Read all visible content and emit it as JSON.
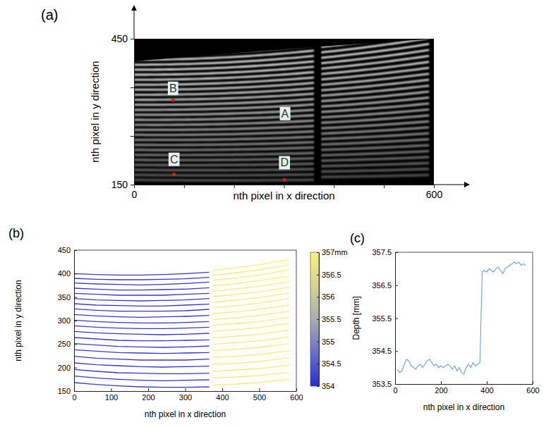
{
  "chart_data": [
    {
      "type": "image",
      "panel_label": "(a)",
      "x_label": "nth pixel in x direction",
      "y_label": "nth pixel in y direction",
      "xlim": [
        0,
        600
      ],
      "ylim": [
        150,
        450
      ],
      "xticks": [
        0,
        {
          "value": 100,
          "label": null
        },
        {
          "value": 200,
          "label": null
        },
        {
          "value": 300,
          "label": null
        },
        {
          "value": 400,
          "label": null
        },
        {
          "value": 500,
          "label": null
        },
        600
      ],
      "yticks": [
        150,
        {
          "value": 250,
          "label": null
        },
        {
          "value": 350,
          "label": null
        },
        450
      ],
      "annotations": [
        {
          "text": "A",
          "x": 302,
          "y": 296
        },
        {
          "text": "B",
          "x": 78,
          "y": 348,
          "point": [
            78,
            324
          ]
        },
        {
          "text": "C",
          "x": 80,
          "y": 202,
          "point": [
            80,
            171
          ]
        },
        {
          "text": "D",
          "x": 301,
          "y": 195,
          "point": [
            301,
            160
          ]
        }
      ]
    },
    {
      "type": "line",
      "panel_label": "(b)",
      "x_label": "nth pixel in x direction",
      "y_label": "nth pixel in y direction",
      "xlim": [
        0,
        600
      ],
      "ylim": [
        150,
        450
      ],
      "xticks": [
        0,
        100,
        200,
        300,
        400,
        500,
        600
      ],
      "yticks": [
        150,
        200,
        250,
        300,
        350,
        400,
        450
      ],
      "x": [
        0,
        60,
        120,
        180,
        240,
        300,
        365,
        370,
        375,
        440,
        500,
        580
      ],
      "series": [
        {
          "values": [
            400,
            398,
            397,
            397,
            398,
            400,
            403,
            null,
            407,
            413,
            419,
            430
          ],
          "depth": [
            354.1,
            354.2,
            354.1,
            354.15,
            354.1,
            354.05,
            354.2,
            null,
            356.9,
            356.85,
            356.9,
            357.0
          ]
        },
        {
          "values": [
            390,
            388,
            387,
            387,
            388,
            389,
            392,
            null,
            396,
            402,
            408,
            419
          ],
          "depth": [
            354.1,
            354.2,
            354.1,
            354.15,
            354.1,
            354.05,
            354.2,
            null,
            356.9,
            356.85,
            356.9,
            357.0
          ]
        },
        {
          "values": [
            380,
            378,
            377,
            376,
            377,
            379,
            382,
            null,
            386,
            391,
            397,
            408
          ],
          "depth": [
            354.1,
            354.2,
            354.1,
            354.15,
            354.1,
            354.05,
            354.2,
            null,
            356.9,
            356.85,
            356.9,
            357.0
          ]
        },
        {
          "values": [
            369,
            367,
            365,
            365,
            366,
            367,
            370,
            null,
            374,
            379,
            385,
            395
          ],
          "depth": [
            354.1,
            354.2,
            354.1,
            354.15,
            354.1,
            354.05,
            354.2,
            null,
            356.9,
            356.85,
            356.9,
            357.0
          ]
        },
        {
          "values": [
            358,
            356,
            354,
            354,
            354,
            356,
            358,
            null,
            362,
            368,
            373,
            383
          ],
          "depth": [
            354.1,
            354.2,
            354.1,
            354.15,
            354.1,
            354.05,
            354.2,
            null,
            356.9,
            356.85,
            356.9,
            357.0
          ]
        },
        {
          "values": [
            347,
            344,
            343,
            342,
            343,
            344,
            347,
            null,
            351,
            356,
            361,
            371
          ],
          "depth": [
            354.1,
            354.2,
            354.1,
            354.15,
            354.1,
            354.05,
            354.2,
            null,
            356.9,
            356.85,
            356.9,
            357.0
          ]
        },
        {
          "values": [
            336,
            333,
            332,
            331,
            331,
            333,
            335,
            null,
            339,
            344,
            349,
            359
          ],
          "depth": [
            354.1,
            354.2,
            354.1,
            354.15,
            354.1,
            354.05,
            354.2,
            null,
            356.9,
            356.85,
            356.9,
            357.0
          ]
        },
        {
          "values": [
            325,
            322,
            320,
            320,
            320,
            321,
            324,
            null,
            328,
            332,
            337,
            347
          ],
          "depth": [
            354.1,
            354.2,
            354.1,
            354.15,
            354.1,
            354.05,
            354.2,
            null,
            356.9,
            356.85,
            356.9,
            357.0
          ]
        },
        {
          "values": [
            313,
            310,
            308,
            307,
            308,
            309,
            311,
            null,
            315,
            319,
            324,
            333
          ],
          "depth": [
            354.1,
            354.2,
            354.1,
            354.15,
            354.1,
            354.05,
            354.2,
            null,
            356.9,
            356.85,
            356.9,
            357.0
          ]
        },
        {
          "values": [
            301,
            298,
            296,
            295,
            295,
            296,
            298,
            null,
            302,
            306,
            311,
            320
          ],
          "depth": [
            354.1,
            354.2,
            354.1,
            354.15,
            354.1,
            354.05,
            354.2,
            null,
            356.9,
            356.85,
            356.9,
            357.0
          ]
        },
        {
          "values": [
            289,
            286,
            284,
            283,
            283,
            284,
            286,
            null,
            290,
            294,
            298,
            307
          ],
          "depth": [
            354.1,
            354.2,
            354.1,
            354.15,
            354.1,
            354.05,
            354.2,
            null,
            356.9,
            356.85,
            356.9,
            357.0
          ]
        },
        {
          "values": [
            277,
            274,
            272,
            271,
            270,
            271,
            273,
            null,
            277,
            281,
            285,
            294
          ],
          "depth": [
            354.1,
            354.2,
            354.1,
            354.15,
            354.1,
            354.05,
            354.2,
            null,
            356.9,
            356.85,
            356.9,
            357.0
          ]
        },
        {
          "values": [
            264,
            261,
            258,
            257,
            257,
            258,
            259,
            null,
            263,
            267,
            271,
            280
          ],
          "depth": [
            354.1,
            354.2,
            354.1,
            354.15,
            354.1,
            354.05,
            354.2,
            null,
            356.9,
            356.85,
            356.9,
            357.0
          ]
        },
        {
          "values": [
            251,
            248,
            245,
            244,
            243,
            244,
            246,
            null,
            250,
            253,
            257,
            265
          ],
          "depth": [
            354.1,
            354.2,
            354.1,
            354.15,
            354.1,
            354.05,
            354.2,
            null,
            356.9,
            356.85,
            356.9,
            357.0
          ]
        },
        {
          "values": [
            238,
            235,
            232,
            231,
            230,
            231,
            232,
            null,
            236,
            239,
            243,
            251
          ],
          "depth": [
            354.1,
            354.2,
            354.1,
            354.15,
            354.1,
            354.05,
            354.2,
            null,
            356.9,
            356.85,
            356.9,
            357.0
          ]
        },
        {
          "values": [
            224,
            220,
            218,
            216,
            216,
            216,
            218,
            null,
            222,
            224,
            228,
            236
          ],
          "depth": [
            354.1,
            354.2,
            354.1,
            354.15,
            354.1,
            354.05,
            354.2,
            null,
            356.9,
            356.85,
            356.9,
            357.0
          ]
        },
        {
          "values": [
            210,
            206,
            204,
            202,
            201,
            202,
            203,
            null,
            207,
            209,
            213,
            221
          ],
          "depth": [
            354.1,
            354.2,
            354.1,
            354.15,
            354.1,
            354.05,
            354.2,
            null,
            356.9,
            356.85,
            356.9,
            357.0
          ]
        },
        {
          "values": [
            196,
            192,
            189,
            188,
            187,
            187,
            188,
            null,
            192,
            195,
            198,
            205
          ],
          "depth": [
            354.1,
            354.2,
            354.1,
            354.15,
            354.1,
            354.05,
            354.2,
            null,
            356.9,
            356.85,
            356.9,
            357.0
          ]
        },
        {
          "values": [
            182,
            178,
            175,
            173,
            172,
            173,
            174,
            null,
            178,
            180,
            183,
            190
          ],
          "depth": [
            354.1,
            354.2,
            354.1,
            354.15,
            354.1,
            354.05,
            354.2,
            null,
            356.9,
            356.85,
            356.9,
            357.0
          ]
        },
        {
          "values": [
            168,
            164,
            161,
            159,
            158,
            158,
            159,
            null,
            163,
            165,
            168,
            175
          ],
          "depth": [
            354.1,
            354.2,
            354.1,
            354.15,
            354.1,
            354.05,
            354.2,
            null,
            356.9,
            356.85,
            356.9,
            357.0
          ]
        }
      ],
      "colorbar": {
        "range": [
          354,
          357
        ],
        "ticks": [
          354,
          354.5,
          355,
          355.5,
          356,
          356.5,
          {
            "value": 357,
            "label": "357mm"
          }
        ],
        "colors": [
          "#2c2cd4",
          "#6a6fcb",
          "#a9aeb0",
          "#d6d492",
          "#faf07c"
        ]
      }
    },
    {
      "type": "line",
      "panel_label": "(c)",
      "x_label": "nth pixel in x direction",
      "y_label": "Depth [mm]",
      "xlim": [
        0,
        600
      ],
      "ylim": [
        353.5,
        357.5
      ],
      "xticks": [
        0,
        200,
        400,
        600
      ],
      "yticks": [
        353.5,
        354.5,
        355.5,
        356.5,
        357.5
      ],
      "x": [
        10,
        20,
        30,
        40,
        50,
        60,
        70,
        80,
        90,
        100,
        110,
        120,
        130,
        140,
        150,
        160,
        170,
        180,
        190,
        200,
        210,
        220,
        230,
        240,
        250,
        260,
        270,
        280,
        290,
        300,
        310,
        320,
        330,
        340,
        350,
        360,
        370,
        380,
        390,
        400,
        410,
        420,
        430,
        440,
        450,
        460,
        470,
        480,
        490,
        500,
        510,
        520,
        530,
        540,
        550,
        560,
        570
      ],
      "series": [
        {
          "color": "#6d9fd0",
          "values": [
            353.95,
            353.85,
            353.9,
            354.1,
            354.25,
            354.2,
            354.05,
            354.0,
            353.95,
            354.05,
            354.1,
            354.0,
            354.1,
            354.2,
            354.25,
            354.15,
            354.05,
            354.1,
            354.0,
            354.05,
            354.0,
            354.05,
            354.1,
            354.05,
            353.95,
            354.05,
            353.9,
            354.0,
            353.85,
            353.8,
            354.0,
            354.1,
            354.0,
            354.15,
            354.05,
            354.1,
            354.15,
            356.9,
            356.95,
            356.9,
            357.0,
            356.95,
            356.9,
            357.0,
            357.05,
            356.95,
            356.85,
            357.0,
            357.05,
            357.1,
            357.15,
            357.2,
            357.15,
            357.2,
            357.1,
            357.15,
            357.1
          ]
        }
      ]
    }
  ]
}
